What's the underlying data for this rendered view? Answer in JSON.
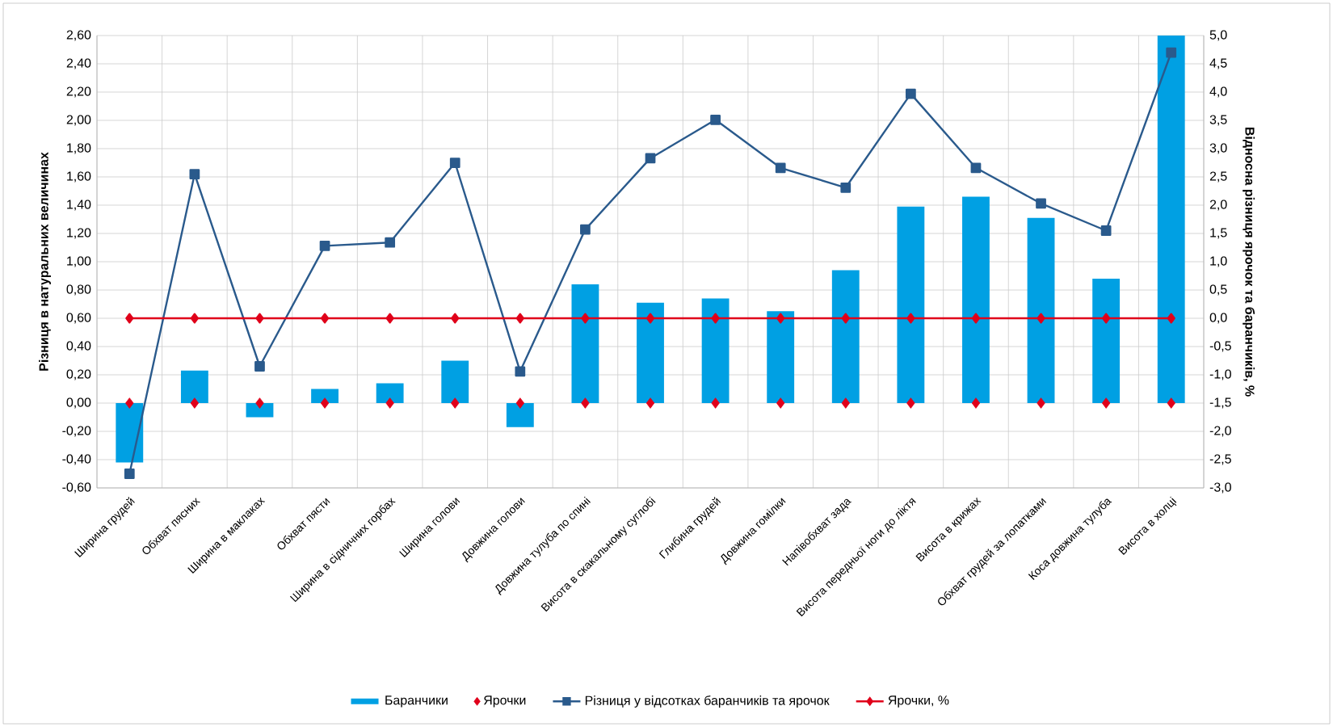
{
  "chart_data": {
    "type": "bar",
    "ylabel": "Різниця в натуральних величинах",
    "y2label": "Відносна різниця ярочок та баранчиків, %",
    "categories": [
      "Ширина грудей",
      "Обхват пясних",
      "Ширина в маклаках",
      "Обхват пясти",
      "Ширина в сідничних горбах",
      "Ширина голови",
      "Довжина голови",
      "Довжина тулуба по спині",
      "Висота в скакальному суглобі",
      "Глибина грудей",
      "Довжина гомілки",
      "Напівобхват зада",
      "Висота передньої ноги до ліктя",
      "Висота в крижах",
      "Обхват грудей за лопатками",
      "Коса довжина тулуба",
      "Висота в холці"
    ],
    "series": [
      {
        "name": "Баранчики",
        "color": "#00a0e3",
        "values": [
          -0.42,
          0.23,
          -0.1,
          0.1,
          0.14,
          0.3,
          -0.17,
          0.84,
          0.71,
          0.74,
          0.65,
          0.94,
          1.39,
          1.46,
          1.31,
          0.88,
          2.6
        ]
      },
      {
        "name": "Ярочки",
        "type": "scatter",
        "color": "#e0001a",
        "marker": "diamond",
        "values": [
          0,
          0,
          0,
          0,
          0,
          0,
          0,
          0,
          0,
          0,
          0,
          0,
          0,
          0,
          0,
          0,
          0
        ]
      },
      {
        "name": "Різниця у відсотках баранчиків та ярочок",
        "type": "line",
        "axis": "y2",
        "color": "#2a5a8c",
        "marker": "square",
        "values": [
          -2.75,
          2.55,
          -0.85,
          1.28,
          1.34,
          2.75,
          -0.94,
          1.57,
          2.83,
          3.51,
          2.66,
          2.31,
          3.97,
          2.66,
          2.03,
          1.55,
          4.7
        ]
      },
      {
        "name": "Ярочки, %",
        "type": "line",
        "axis": "y2",
        "color": "#e0001a",
        "marker": "diamond",
        "values": [
          0,
          0,
          0,
          0,
          0,
          0,
          0,
          0,
          0,
          0,
          0,
          0,
          0,
          0,
          0,
          0,
          0
        ]
      }
    ],
    "ylim": [
      -0.6,
      2.6
    ],
    "yticks": [
      {
        "value": -0.6,
        "label": "-0,60"
      },
      {
        "value": -0.4,
        "label": "-0,40"
      },
      {
        "value": -0.2,
        "label": "-0,20"
      },
      {
        "value": 0,
        "label": "0,00"
      },
      {
        "value": 0.2,
        "label": "0,20"
      },
      {
        "value": 0.4,
        "label": "0,40"
      },
      {
        "value": 0.6,
        "label": "0,60"
      },
      {
        "value": 0.8,
        "label": "0,80"
      },
      {
        "value": 1.0,
        "label": "1,00"
      },
      {
        "value": 1.2,
        "label": "1,20"
      },
      {
        "value": 1.4,
        "label": "1,40"
      },
      {
        "value": 1.6,
        "label": "1,60"
      },
      {
        "value": 1.8,
        "label": "1,80"
      },
      {
        "value": 2.0,
        "label": "2,00"
      },
      {
        "value": 2.2,
        "label": "2,20"
      },
      {
        "value": 2.4,
        "label": "2,40"
      },
      {
        "value": 2.6,
        "label": "2,60"
      }
    ],
    "y2lim": [
      -3.0,
      5.0
    ],
    "y2ticks": [
      {
        "value": -3.0,
        "label": "-3,0"
      },
      {
        "value": -2.5,
        "label": "-2,5"
      },
      {
        "value": -2.0,
        "label": "-2,0"
      },
      {
        "value": -1.5,
        "label": "-1,5"
      },
      {
        "value": -1.0,
        "label": "-1,0"
      },
      {
        "value": -0.5,
        "label": "-0,5"
      },
      {
        "value": 0,
        "label": "0,0"
      },
      {
        "value": 0.5,
        "label": "0,5"
      },
      {
        "value": 1.0,
        "label": "1,0"
      },
      {
        "value": 1.5,
        "label": "1,5"
      },
      {
        "value": 2.0,
        "label": "2,0"
      },
      {
        "value": 2.5,
        "label": "2,5"
      },
      {
        "value": 3.0,
        "label": "3,0"
      },
      {
        "value": 3.5,
        "label": "3,5"
      },
      {
        "value": 4.0,
        "label": "4,0"
      },
      {
        "value": 4.5,
        "label": "4,5"
      },
      {
        "value": 5.0,
        "label": "5,0"
      }
    ],
    "grid": true,
    "legend": "bottom"
  }
}
